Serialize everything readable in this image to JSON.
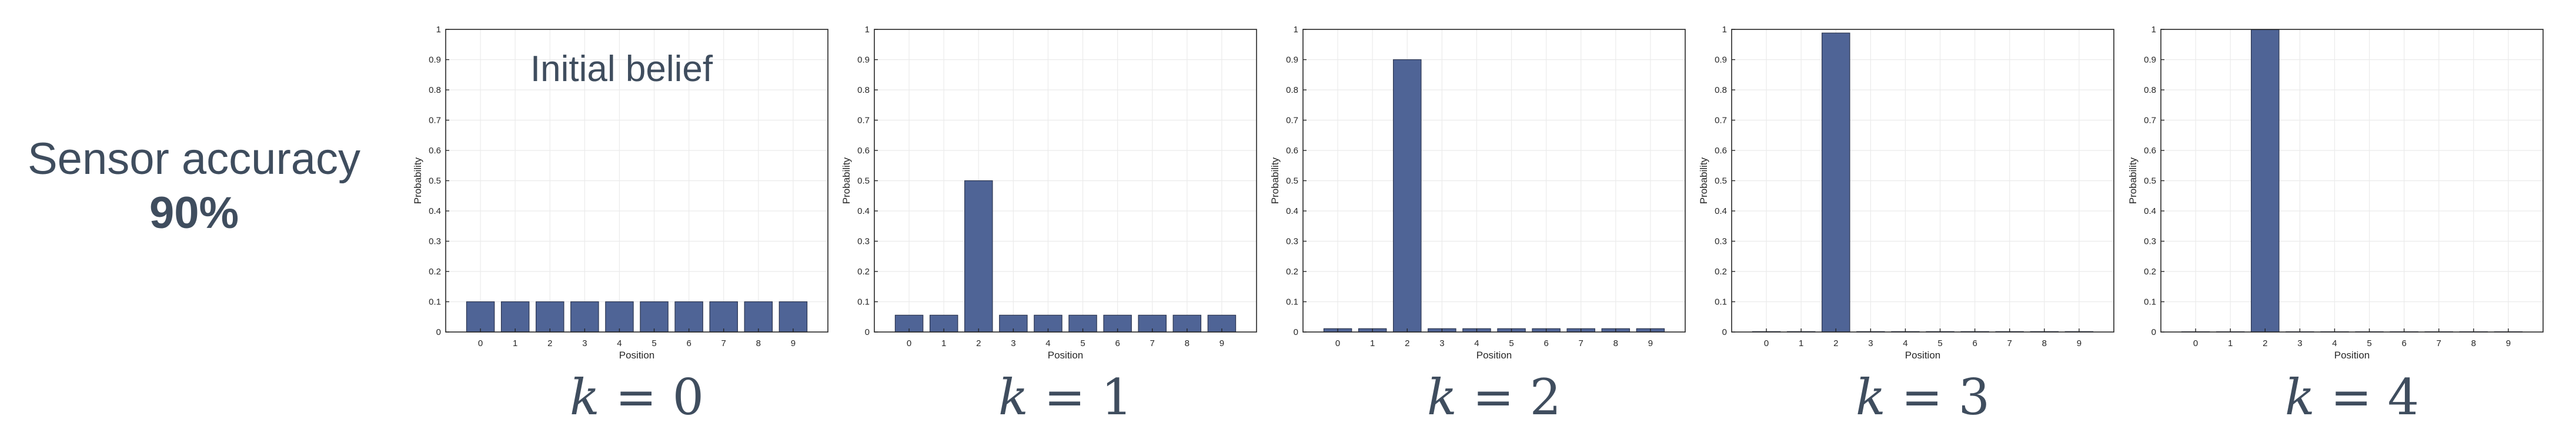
{
  "side_label": {
    "line1": "Sensor accuracy",
    "line2": "90%"
  },
  "colors": {
    "bar": "#4f6496",
    "bar_edge": "#2b3550",
    "grid": "#ebebeb",
    "axis": "#262626",
    "text": "#3f4d5e"
  },
  "chart_data": [
    {
      "type": "bar",
      "categories": [
        "0",
        "1",
        "2",
        "3",
        "4",
        "5",
        "6",
        "7",
        "8",
        "9"
      ],
      "values": [
        0.1,
        0.1,
        0.1,
        0.1,
        0.1,
        0.1,
        0.1,
        0.1,
        0.1,
        0.1
      ],
      "title": "",
      "annotation": "Initial belief",
      "xlabel": "Position",
      "ylabel": "Probability",
      "ylim": [
        0,
        1
      ],
      "yticks": [
        "0",
        "0.1",
        "0.2",
        "0.3",
        "0.4",
        "0.5",
        "0.6",
        "0.7",
        "0.8",
        "0.9",
        "1"
      ],
      "grid": true,
      "caption_var": "k",
      "caption_op": "=",
      "caption_num": "0"
    },
    {
      "type": "bar",
      "categories": [
        "0",
        "1",
        "2",
        "3",
        "4",
        "5",
        "6",
        "7",
        "8",
        "9"
      ],
      "values": [
        0.0556,
        0.0556,
        0.5,
        0.0556,
        0.0556,
        0.0556,
        0.0556,
        0.0556,
        0.0556,
        0.0556
      ],
      "title": "",
      "xlabel": "Position",
      "ylabel": "Probability",
      "ylim": [
        0,
        1
      ],
      "yticks": [
        "0",
        "0.1",
        "0.2",
        "0.3",
        "0.4",
        "0.5",
        "0.6",
        "0.7",
        "0.8",
        "0.9",
        "1"
      ],
      "grid": true,
      "caption_var": "k",
      "caption_op": "=",
      "caption_num": "1"
    },
    {
      "type": "bar",
      "categories": [
        "0",
        "1",
        "2",
        "3",
        "4",
        "5",
        "6",
        "7",
        "8",
        "9"
      ],
      "values": [
        0.011,
        0.011,
        0.9,
        0.011,
        0.011,
        0.011,
        0.011,
        0.011,
        0.011,
        0.011
      ],
      "title": "",
      "xlabel": "Position",
      "ylabel": "Probability",
      "ylim": [
        0,
        1
      ],
      "yticks": [
        "0",
        "0.1",
        "0.2",
        "0.3",
        "0.4",
        "0.5",
        "0.6",
        "0.7",
        "0.8",
        "0.9",
        "1"
      ],
      "grid": true,
      "caption_var": "k",
      "caption_op": "=",
      "caption_num": "2"
    },
    {
      "type": "bar",
      "categories": [
        "0",
        "1",
        "2",
        "3",
        "4",
        "5",
        "6",
        "7",
        "8",
        "9"
      ],
      "values": [
        0.0014,
        0.0014,
        0.988,
        0.0014,
        0.0014,
        0.0014,
        0.0014,
        0.0014,
        0.0014,
        0.0014
      ],
      "title": "",
      "xlabel": "Position",
      "ylabel": "Probability",
      "ylim": [
        0,
        1
      ],
      "yticks": [
        "0",
        "0.1",
        "0.2",
        "0.3",
        "0.4",
        "0.5",
        "0.6",
        "0.7",
        "0.8",
        "0.9",
        "1"
      ],
      "grid": true,
      "caption_var": "k",
      "caption_op": "=",
      "caption_num": "3"
    },
    {
      "type": "bar",
      "categories": [
        "0",
        "1",
        "2",
        "3",
        "4",
        "5",
        "6",
        "7",
        "8",
        "9"
      ],
      "values": [
        0.0001,
        0.0001,
        0.999,
        0.0001,
        0.0001,
        0.0001,
        0.0001,
        0.0001,
        0.0001,
        0.0001
      ],
      "title": "",
      "xlabel": "Position",
      "ylabel": "Probability",
      "ylim": [
        0,
        1
      ],
      "yticks": [
        "0",
        "0.1",
        "0.2",
        "0.3",
        "0.4",
        "0.5",
        "0.6",
        "0.7",
        "0.8",
        "0.9",
        "1"
      ],
      "grid": true,
      "caption_var": "k",
      "caption_op": "=",
      "caption_num": "4"
    }
  ]
}
